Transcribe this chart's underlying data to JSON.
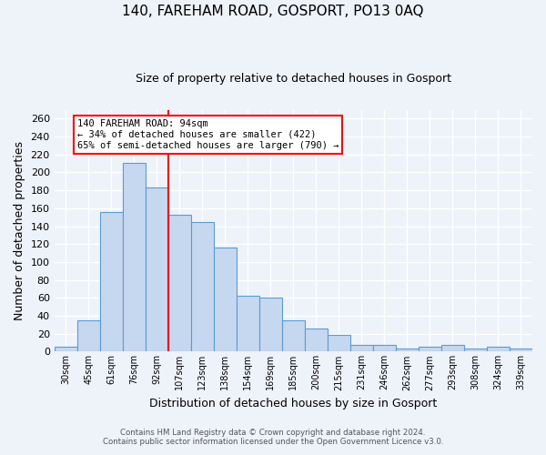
{
  "title": "140, FAREHAM ROAD, GOSPORT, PO13 0AQ",
  "subtitle": "Size of property relative to detached houses in Gosport",
  "xlabel": "Distribution of detached houses by size in Gosport",
  "ylabel": "Number of detached properties",
  "categories": [
    "30sqm",
    "45sqm",
    "61sqm",
    "76sqm",
    "92sqm",
    "107sqm",
    "123sqm",
    "138sqm",
    "154sqm",
    "169sqm",
    "185sqm",
    "200sqm",
    "215sqm",
    "231sqm",
    "246sqm",
    "262sqm",
    "277sqm",
    "293sqm",
    "308sqm",
    "324sqm",
    "339sqm"
  ],
  "values": [
    5,
    35,
    156,
    211,
    183,
    153,
    145,
    116,
    62,
    60,
    35,
    26,
    19,
    8,
    8,
    3,
    5,
    7,
    3,
    5,
    3
  ],
  "bar_color": "#c5d8f0",
  "bar_edge_color": "#5b9bd5",
  "redline_x": 4.5,
  "annotation_text": "140 FAREHAM ROAD: 94sqm\n← 34% of detached houses are smaller (422)\n65% of semi-detached houses are larger (790) →",
  "ylim": [
    0,
    270
  ],
  "yticks": [
    0,
    20,
    40,
    60,
    80,
    100,
    120,
    140,
    160,
    180,
    200,
    220,
    240,
    260
  ],
  "background_color": "#eef2f9",
  "grid_color": "#ffffff",
  "footer_line1": "Contains HM Land Registry data © Crown copyright and database right 2024.",
  "footer_line2": "Contains public sector information licensed under the Open Government Licence v3.0."
}
